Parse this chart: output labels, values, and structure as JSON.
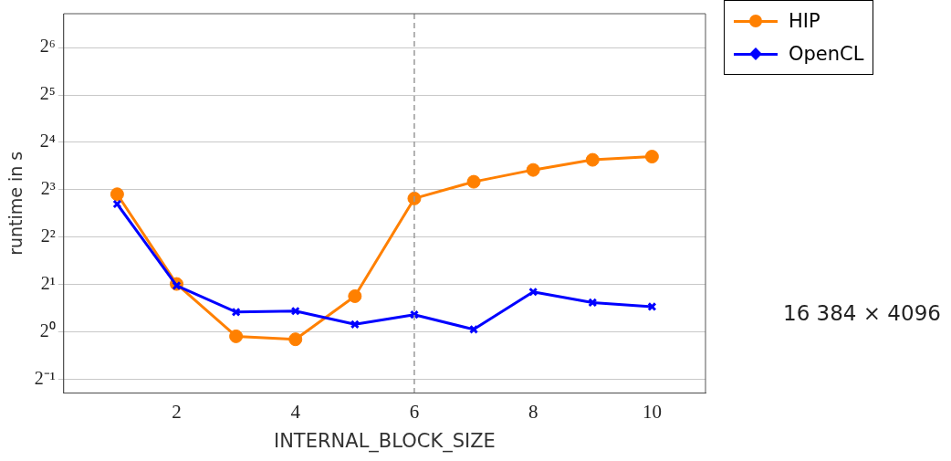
{
  "chart_data": {
    "type": "line",
    "xlabel": "INTERNAL_BLOCK_SIZE",
    "ylabel": "runtime in s",
    "x": [
      1,
      2,
      3,
      4,
      5,
      6,
      7,
      8,
      9,
      10
    ],
    "series": [
      {
        "name": "HIP",
        "color": "#ff8000",
        "marker": "circle",
        "values": [
          7.5,
          2.02,
          0.94,
          0.9,
          1.69,
          7.05,
          9.0,
          10.7,
          12.4,
          13.0
        ]
      },
      {
        "name": "OpenCL",
        "color": "#0000ff",
        "marker": "cross",
        "values": [
          6.5,
          1.97,
          1.34,
          1.36,
          1.12,
          1.29,
          1.04,
          1.8,
          1.54,
          1.45
        ]
      }
    ],
    "log": "y",
    "xlim": [
      0.1,
      10.9
    ],
    "xticks": [
      2,
      4,
      6,
      8,
      10
    ],
    "ylim": [
      0.41,
      105
    ],
    "yticks": [
      {
        "value": 0.5,
        "label": "2⁻¹"
      },
      {
        "value": 1,
        "label": "2⁰"
      },
      {
        "value": 2,
        "label": "2¹"
      },
      {
        "value": 4,
        "label": "2²"
      },
      {
        "value": 8,
        "label": "2³"
      },
      {
        "value": 16,
        "label": "2⁴"
      },
      {
        "value": 32,
        "label": "2⁵"
      },
      {
        "value": 64,
        "label": "2⁶"
      }
    ],
    "grid": "y",
    "legend": "top right",
    "line_style": "solid",
    "ref_lines": [
      {
        "axis": "x",
        "value": 6,
        "color": "#999999",
        "line_style": "dashed"
      }
    ],
    "annotations": [
      "16 384 × 4096"
    ]
  }
}
